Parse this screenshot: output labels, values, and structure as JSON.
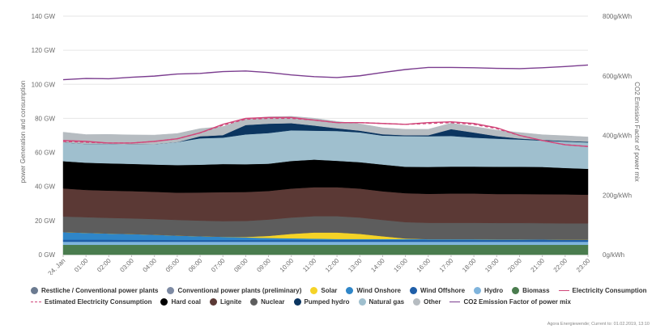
{
  "chart_data": {
    "type": "area",
    "x": [
      "24. Jan",
      "01:00",
      "02:00",
      "03:00",
      "04:00",
      "05:00",
      "06:00",
      "07:00",
      "08:00",
      "09:00",
      "10:00",
      "11:00",
      "12:00",
      "13:00",
      "14:00",
      "15:00",
      "16:00",
      "17:00",
      "18:00",
      "19:00",
      "20:00",
      "21:00",
      "22:00",
      "23:00"
    ],
    "left_axis": {
      "label": "power Generation and consumption",
      "ticks": [
        "0 GW",
        "20 GW",
        "40 GW",
        "60 GW",
        "80 GW",
        "100 GW",
        "120 GW",
        "140 GW"
      ],
      "ylim": [
        0,
        140
      ]
    },
    "right_axis": {
      "label": "CO2 Emission Factor of power mix",
      "ticks": [
        "0g/kWh",
        "200g/kWh",
        "400g/kWh",
        "600g/kWh",
        "800g/kWh"
      ],
      "ylim": [
        0,
        800
      ]
    },
    "stacked_series": [
      {
        "name": "Biomass",
        "color": "#4a7c4e",
        "values": [
          5.8,
          5.8,
          5.8,
          5.8,
          5.8,
          5.8,
          5.8,
          5.8,
          5.8,
          5.8,
          5.8,
          5.8,
          5.8,
          5.8,
          5.8,
          5.8,
          5.8,
          5.8,
          5.8,
          5.8,
          5.8,
          5.8,
          5.8,
          5.8
        ]
      },
      {
        "name": "Hydro",
        "color": "#7fb4dc",
        "values": [
          1.8,
          1.8,
          1.8,
          1.8,
          1.8,
          1.8,
          1.8,
          1.8,
          1.8,
          1.8,
          1.8,
          1.8,
          1.8,
          1.8,
          1.8,
          1.8,
          1.8,
          1.8,
          1.8,
          1.8,
          1.8,
          1.8,
          1.8,
          1.8
        ]
      },
      {
        "name": "Wind Offshore",
        "color": "#1f5ea8",
        "values": [
          1.2,
          1.2,
          1.2,
          1.1,
          1.1,
          1.0,
          1.0,
          1.0,
          1.0,
          1.0,
          1.0,
          1.0,
          1.0,
          1.0,
          1.0,
          1.0,
          1.0,
          1.0,
          1.0,
          1.0,
          1.0,
          1.0,
          1.0,
          1.0
        ]
      },
      {
        "name": "Wind Onshore",
        "color": "#2f86c8",
        "values": [
          4.4,
          4.0,
          3.6,
          3.4,
          3.0,
          2.6,
          2.2,
          1.9,
          1.5,
          1.2,
          1.0,
          0.8,
          0.6,
          0.6,
          0.6,
          0.6,
          0.5,
          0.5,
          0.5,
          0.4,
          0.4,
          0.3,
          0.2,
          0.2
        ]
      },
      {
        "name": "Solar",
        "color": "#f5d327",
        "values": [
          0,
          0,
          0,
          0,
          0,
          0,
          0,
          0,
          0.3,
          1.2,
          2.6,
          3.6,
          3.8,
          3.0,
          1.6,
          0.3,
          0,
          0,
          0,
          0,
          0,
          0,
          0,
          0
        ]
      },
      {
        "name": "Nuclear",
        "color": "#5d5d5d",
        "values": [
          9.2,
          9.2,
          9.2,
          9.2,
          9.2,
          9.2,
          9.2,
          9.2,
          9.4,
          9.6,
          9.6,
          9.6,
          9.6,
          9.6,
          9.6,
          9.6,
          9.6,
          9.6,
          9.6,
          9.6,
          9.6,
          9.6,
          9.6,
          9.6
        ]
      },
      {
        "name": "Lignite",
        "color": "#5b3935",
        "values": [
          16.5,
          16.0,
          16.0,
          16.0,
          16.0,
          16.0,
          16.5,
          17.0,
          17.0,
          16.8,
          17.0,
          17.0,
          17.0,
          17.0,
          16.8,
          17.0,
          17.0,
          17.2,
          17.2,
          17.0,
          17.0,
          17.0,
          17.0,
          16.8
        ]
      },
      {
        "name": "Hard coal",
        "color": "#000000",
        "values": [
          16.0,
          16.0,
          16.0,
          16.0,
          16.0,
          16.2,
          16.3,
          16.5,
          16.3,
          16.0,
          16.2,
          16.2,
          15.5,
          15.5,
          15.7,
          15.5,
          15.8,
          15.8,
          15.8,
          16.0,
          16.0,
          16.0,
          15.5,
          15.2
        ]
      },
      {
        "name": "Natural gas",
        "color": "#9fbfce",
        "values": [
          11.0,
          11.0,
          11.5,
          11.5,
          12.0,
          13.5,
          15.5,
          15.5,
          17.5,
          18.0,
          18.0,
          17.0,
          17.5,
          17.5,
          17.0,
          18.0,
          18.0,
          18.0,
          17.0,
          16.5,
          16.0,
          15.5,
          15.5,
          15.5
        ]
      },
      {
        "name": "Pumped hydro",
        "color": "#0b3560",
        "values": [
          0,
          0,
          0,
          0,
          0,
          0,
          1.2,
          1.5,
          5.5,
          5.5,
          4.2,
          3.0,
          1.6,
          1.0,
          0.8,
          0.5,
          0.6,
          4.0,
          3.0,
          1.5,
          0.6,
          0.4,
          0.4,
          0.4
        ]
      },
      {
        "name": "Other",
        "color": "#b6bcc1",
        "values": [
          6.0,
          5.5,
          5.5,
          5.5,
          5.3,
          5.0,
          4.5,
          5.0,
          3.8,
          4.0,
          4.0,
          4.3,
          4.0,
          4.0,
          3.8,
          3.5,
          3.5,
          3.5,
          3.5,
          3.5,
          3.5,
          3.0,
          3.0,
          2.8
        ]
      }
    ],
    "line_series": [
      {
        "name": "Electricity Consumption",
        "axis": "left",
        "color": "#d1477a",
        "style": "solid",
        "values": [
          67.0,
          66.5,
          65.5,
          65.5,
          66.5,
          68.0,
          71.5,
          76.5,
          80.0,
          80.5,
          80.5,
          79.0,
          77.5,
          77.5,
          77.0,
          76.5,
          77.5,
          78.0,
          77.0,
          74.5,
          70.0,
          67.0,
          64.5,
          63.5
        ]
      },
      {
        "name": "Estimated Electricity Consumption",
        "axis": "left",
        "color": "#d1477a",
        "style": "dashed",
        "values": [
          66.5,
          66.0,
          65.5,
          65.5,
          66.5,
          68.0,
          71.5,
          76.0,
          79.5,
          80.0,
          80.0,
          79.0,
          77.5,
          77.5,
          77.0,
          76.5,
          77.0,
          77.5,
          76.5,
          74.0,
          70.0,
          67.0,
          64.5,
          63.5
        ]
      },
      {
        "name": "CO2 Emission Factor of power mix",
        "axis": "right",
        "color": "#7b3d8f",
        "style": "solid",
        "values": [
          587,
          591,
          590,
          595,
          599,
          606,
          608,
          614,
          616,
          611,
          603,
          597,
          594,
          600,
          611,
          621,
          628,
          628,
          627,
          625,
          624,
          627,
          631,
          636
        ]
      }
    ],
    "legend": [
      {
        "name": "Restliche / Conventional power plants",
        "color": "#6b7a90",
        "marker": "dot"
      },
      {
        "name": "Conventional power plants (preliminary)",
        "color": "#7d8aa3",
        "marker": "dot"
      },
      {
        "name": "Solar",
        "color": "#f5d327",
        "marker": "dot"
      },
      {
        "name": "Wind Onshore",
        "color": "#2f86c8",
        "marker": "dot"
      },
      {
        "name": "Wind Offshore",
        "color": "#1f5ea8",
        "marker": "dot"
      },
      {
        "name": "Hydro",
        "color": "#7fb4dc",
        "marker": "dot"
      },
      {
        "name": "Biomass",
        "color": "#4a7c4e",
        "marker": "dot"
      },
      {
        "name": "Electricity Consumption",
        "color": "#d1477a",
        "marker": "line"
      },
      {
        "name": "Estimated Electricity Consumption",
        "color": "#d1477a",
        "marker": "dash"
      },
      {
        "name": "Hard coal",
        "color": "#000000",
        "marker": "dot"
      },
      {
        "name": "Lignite",
        "color": "#5b3935",
        "marker": "dot"
      },
      {
        "name": "Nuclear",
        "color": "#5d5d5d",
        "marker": "dot"
      },
      {
        "name": "Pumped hydro",
        "color": "#0b3560",
        "marker": "dot"
      },
      {
        "name": "Natural gas",
        "color": "#9fbfce",
        "marker": "dot"
      },
      {
        "name": "Other",
        "color": "#b6bcc1",
        "marker": "dot"
      },
      {
        "name": "CO2 Emission Factor of power mix",
        "color": "#7b3d8f",
        "marker": "line"
      }
    ],
    "grid": true,
    "legend_placement": "bottom"
  },
  "footer": "Agora Energiewende; Current to: 01.02.2019, 13:10"
}
